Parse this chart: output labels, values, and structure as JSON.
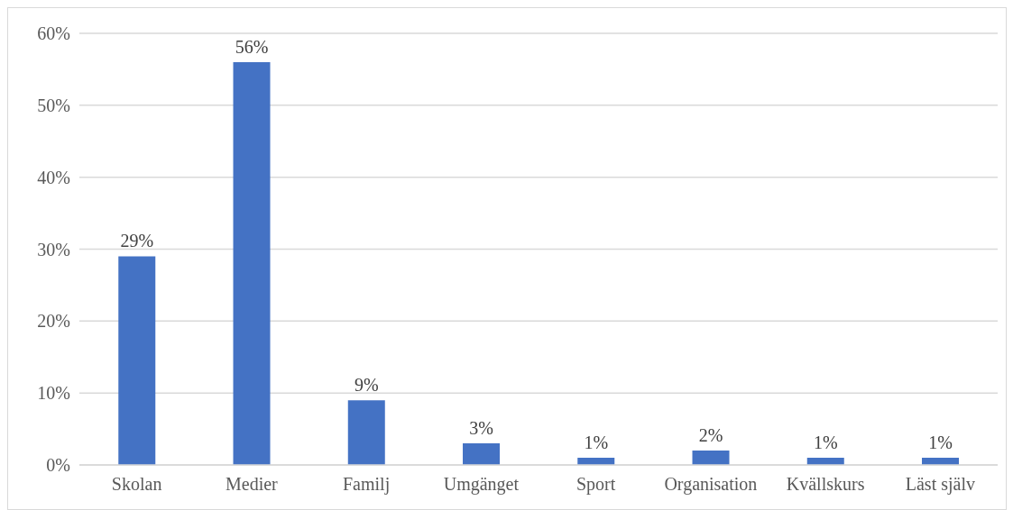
{
  "chart_data": {
    "type": "bar",
    "categories": [
      "Skolan",
      "Medier",
      "Familj",
      "Umgänget",
      "Sport",
      "Organisation",
      "Kvällskurs",
      "Läst själv"
    ],
    "values": [
      29,
      56,
      9,
      3,
      1,
      2,
      1,
      1
    ],
    "value_labels": [
      "29%",
      "56%",
      "9%",
      "3%",
      "1%",
      "2%",
      "1%",
      "1%"
    ],
    "color": "#4472c4",
    "ylim": [
      0,
      60
    ],
    "yticks": [
      {
        "value": 0,
        "label": "0%"
      },
      {
        "value": 10,
        "label": "10%"
      },
      {
        "value": 20,
        "label": "20%"
      },
      {
        "value": 30,
        "label": "30%"
      },
      {
        "value": 40,
        "label": "40%"
      },
      {
        "value": 50,
        "label": "50%"
      },
      {
        "value": 60,
        "label": "60%"
      }
    ],
    "grid": "y"
  }
}
